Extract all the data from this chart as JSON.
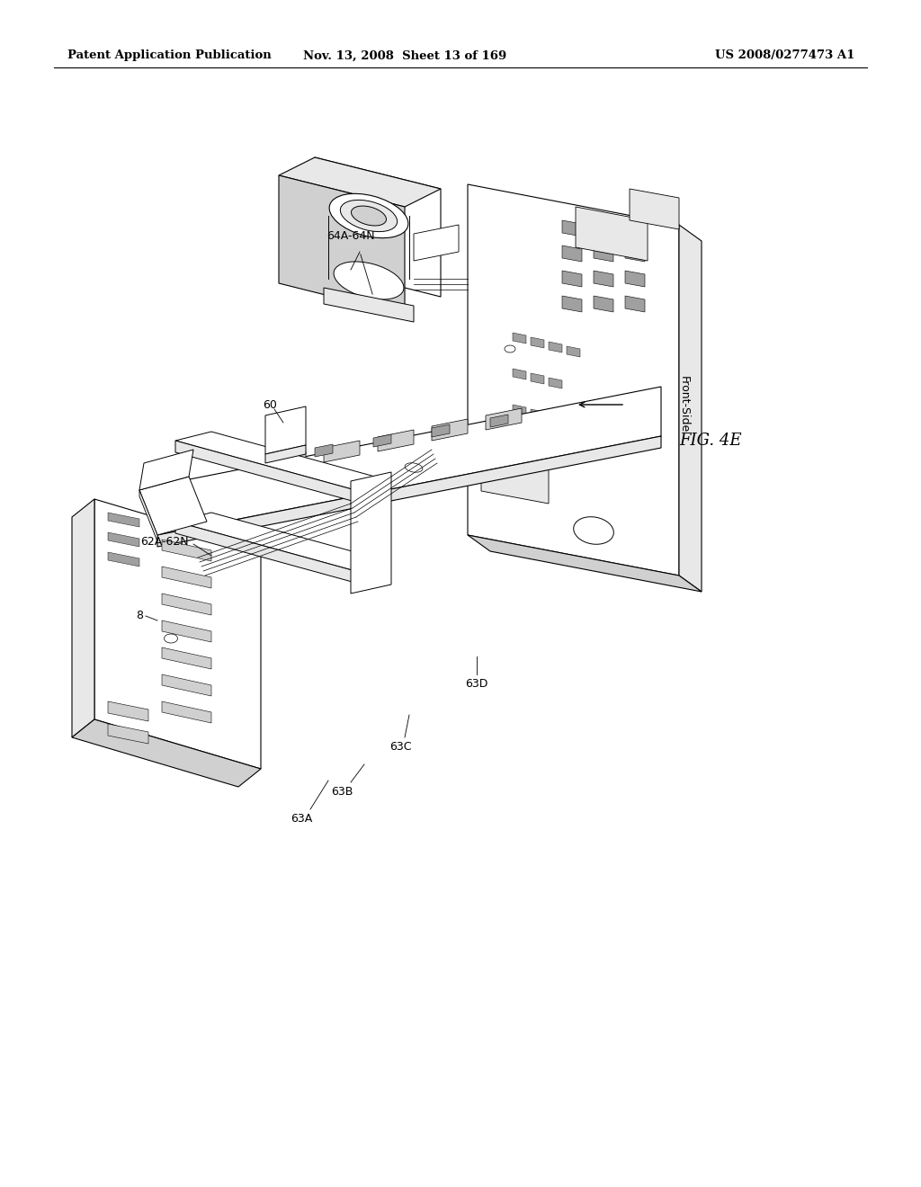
{
  "background_color": "#ffffff",
  "header_left": "Patent Application Publication",
  "header_center": "Nov. 13, 2008  Sheet 13 of 169",
  "header_right": "US 2008/0277473 A1",
  "fig_label": "FIG. 4E",
  "draw_color": "#000000",
  "light_gray": "#e8e8e8",
  "mid_gray": "#d0d0d0",
  "dark_gray": "#a0a0a0"
}
